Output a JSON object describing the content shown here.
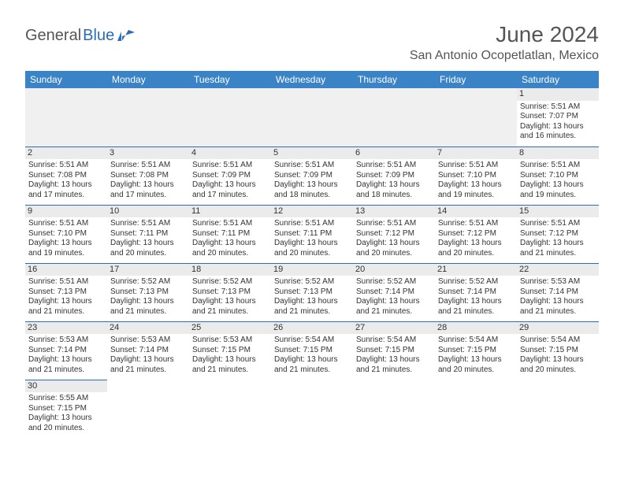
{
  "logo": {
    "part1": "General",
    "part2": "Blue"
  },
  "title": "June 2024",
  "location": "San Antonio Ocopetlatlan, Mexico",
  "colors": {
    "header_bg": "#3b83c7",
    "header_text": "#ffffff",
    "daynum_bg": "#ebebeb",
    "border": "#2a6db8",
    "logo_accent": "#2a6db8",
    "logo_gray": "#555555",
    "text": "#333333",
    "background": "#ffffff"
  },
  "day_headers": [
    "Sunday",
    "Monday",
    "Tuesday",
    "Wednesday",
    "Thursday",
    "Friday",
    "Saturday"
  ],
  "weeks": [
    [
      null,
      null,
      null,
      null,
      null,
      null,
      {
        "n": "1",
        "sr": "Sunrise: 5:51 AM",
        "ss": "Sunset: 7:07 PM",
        "d1": "Daylight: 13 hours",
        "d2": "and 16 minutes."
      }
    ],
    [
      {
        "n": "2",
        "sr": "Sunrise: 5:51 AM",
        "ss": "Sunset: 7:08 PM",
        "d1": "Daylight: 13 hours",
        "d2": "and 17 minutes."
      },
      {
        "n": "3",
        "sr": "Sunrise: 5:51 AM",
        "ss": "Sunset: 7:08 PM",
        "d1": "Daylight: 13 hours",
        "d2": "and 17 minutes."
      },
      {
        "n": "4",
        "sr": "Sunrise: 5:51 AM",
        "ss": "Sunset: 7:09 PM",
        "d1": "Daylight: 13 hours",
        "d2": "and 17 minutes."
      },
      {
        "n": "5",
        "sr": "Sunrise: 5:51 AM",
        "ss": "Sunset: 7:09 PM",
        "d1": "Daylight: 13 hours",
        "d2": "and 18 minutes."
      },
      {
        "n": "6",
        "sr": "Sunrise: 5:51 AM",
        "ss": "Sunset: 7:09 PM",
        "d1": "Daylight: 13 hours",
        "d2": "and 18 minutes."
      },
      {
        "n": "7",
        "sr": "Sunrise: 5:51 AM",
        "ss": "Sunset: 7:10 PM",
        "d1": "Daylight: 13 hours",
        "d2": "and 19 minutes."
      },
      {
        "n": "8",
        "sr": "Sunrise: 5:51 AM",
        "ss": "Sunset: 7:10 PM",
        "d1": "Daylight: 13 hours",
        "d2": "and 19 minutes."
      }
    ],
    [
      {
        "n": "9",
        "sr": "Sunrise: 5:51 AM",
        "ss": "Sunset: 7:10 PM",
        "d1": "Daylight: 13 hours",
        "d2": "and 19 minutes."
      },
      {
        "n": "10",
        "sr": "Sunrise: 5:51 AM",
        "ss": "Sunset: 7:11 PM",
        "d1": "Daylight: 13 hours",
        "d2": "and 20 minutes."
      },
      {
        "n": "11",
        "sr": "Sunrise: 5:51 AM",
        "ss": "Sunset: 7:11 PM",
        "d1": "Daylight: 13 hours",
        "d2": "and 20 minutes."
      },
      {
        "n": "12",
        "sr": "Sunrise: 5:51 AM",
        "ss": "Sunset: 7:11 PM",
        "d1": "Daylight: 13 hours",
        "d2": "and 20 minutes."
      },
      {
        "n": "13",
        "sr": "Sunrise: 5:51 AM",
        "ss": "Sunset: 7:12 PM",
        "d1": "Daylight: 13 hours",
        "d2": "and 20 minutes."
      },
      {
        "n": "14",
        "sr": "Sunrise: 5:51 AM",
        "ss": "Sunset: 7:12 PM",
        "d1": "Daylight: 13 hours",
        "d2": "and 20 minutes."
      },
      {
        "n": "15",
        "sr": "Sunrise: 5:51 AM",
        "ss": "Sunset: 7:12 PM",
        "d1": "Daylight: 13 hours",
        "d2": "and 21 minutes."
      }
    ],
    [
      {
        "n": "16",
        "sr": "Sunrise: 5:51 AM",
        "ss": "Sunset: 7:13 PM",
        "d1": "Daylight: 13 hours",
        "d2": "and 21 minutes."
      },
      {
        "n": "17",
        "sr": "Sunrise: 5:52 AM",
        "ss": "Sunset: 7:13 PM",
        "d1": "Daylight: 13 hours",
        "d2": "and 21 minutes."
      },
      {
        "n": "18",
        "sr": "Sunrise: 5:52 AM",
        "ss": "Sunset: 7:13 PM",
        "d1": "Daylight: 13 hours",
        "d2": "and 21 minutes."
      },
      {
        "n": "19",
        "sr": "Sunrise: 5:52 AM",
        "ss": "Sunset: 7:13 PM",
        "d1": "Daylight: 13 hours",
        "d2": "and 21 minutes."
      },
      {
        "n": "20",
        "sr": "Sunrise: 5:52 AM",
        "ss": "Sunset: 7:14 PM",
        "d1": "Daylight: 13 hours",
        "d2": "and 21 minutes."
      },
      {
        "n": "21",
        "sr": "Sunrise: 5:52 AM",
        "ss": "Sunset: 7:14 PM",
        "d1": "Daylight: 13 hours",
        "d2": "and 21 minutes."
      },
      {
        "n": "22",
        "sr": "Sunrise: 5:53 AM",
        "ss": "Sunset: 7:14 PM",
        "d1": "Daylight: 13 hours",
        "d2": "and 21 minutes."
      }
    ],
    [
      {
        "n": "23",
        "sr": "Sunrise: 5:53 AM",
        "ss": "Sunset: 7:14 PM",
        "d1": "Daylight: 13 hours",
        "d2": "and 21 minutes."
      },
      {
        "n": "24",
        "sr": "Sunrise: 5:53 AM",
        "ss": "Sunset: 7:14 PM",
        "d1": "Daylight: 13 hours",
        "d2": "and 21 minutes."
      },
      {
        "n": "25",
        "sr": "Sunrise: 5:53 AM",
        "ss": "Sunset: 7:15 PM",
        "d1": "Daylight: 13 hours",
        "d2": "and 21 minutes."
      },
      {
        "n": "26",
        "sr": "Sunrise: 5:54 AM",
        "ss": "Sunset: 7:15 PM",
        "d1": "Daylight: 13 hours",
        "d2": "and 21 minutes."
      },
      {
        "n": "27",
        "sr": "Sunrise: 5:54 AM",
        "ss": "Sunset: 7:15 PM",
        "d1": "Daylight: 13 hours",
        "d2": "and 21 minutes."
      },
      {
        "n": "28",
        "sr": "Sunrise: 5:54 AM",
        "ss": "Sunset: 7:15 PM",
        "d1": "Daylight: 13 hours",
        "d2": "and 20 minutes."
      },
      {
        "n": "29",
        "sr": "Sunrise: 5:54 AM",
        "ss": "Sunset: 7:15 PM",
        "d1": "Daylight: 13 hours",
        "d2": "and 20 minutes."
      }
    ],
    [
      {
        "n": "30",
        "sr": "Sunrise: 5:55 AM",
        "ss": "Sunset: 7:15 PM",
        "d1": "Daylight: 13 hours",
        "d2": "and 20 minutes."
      },
      null,
      null,
      null,
      null,
      null,
      null
    ]
  ]
}
